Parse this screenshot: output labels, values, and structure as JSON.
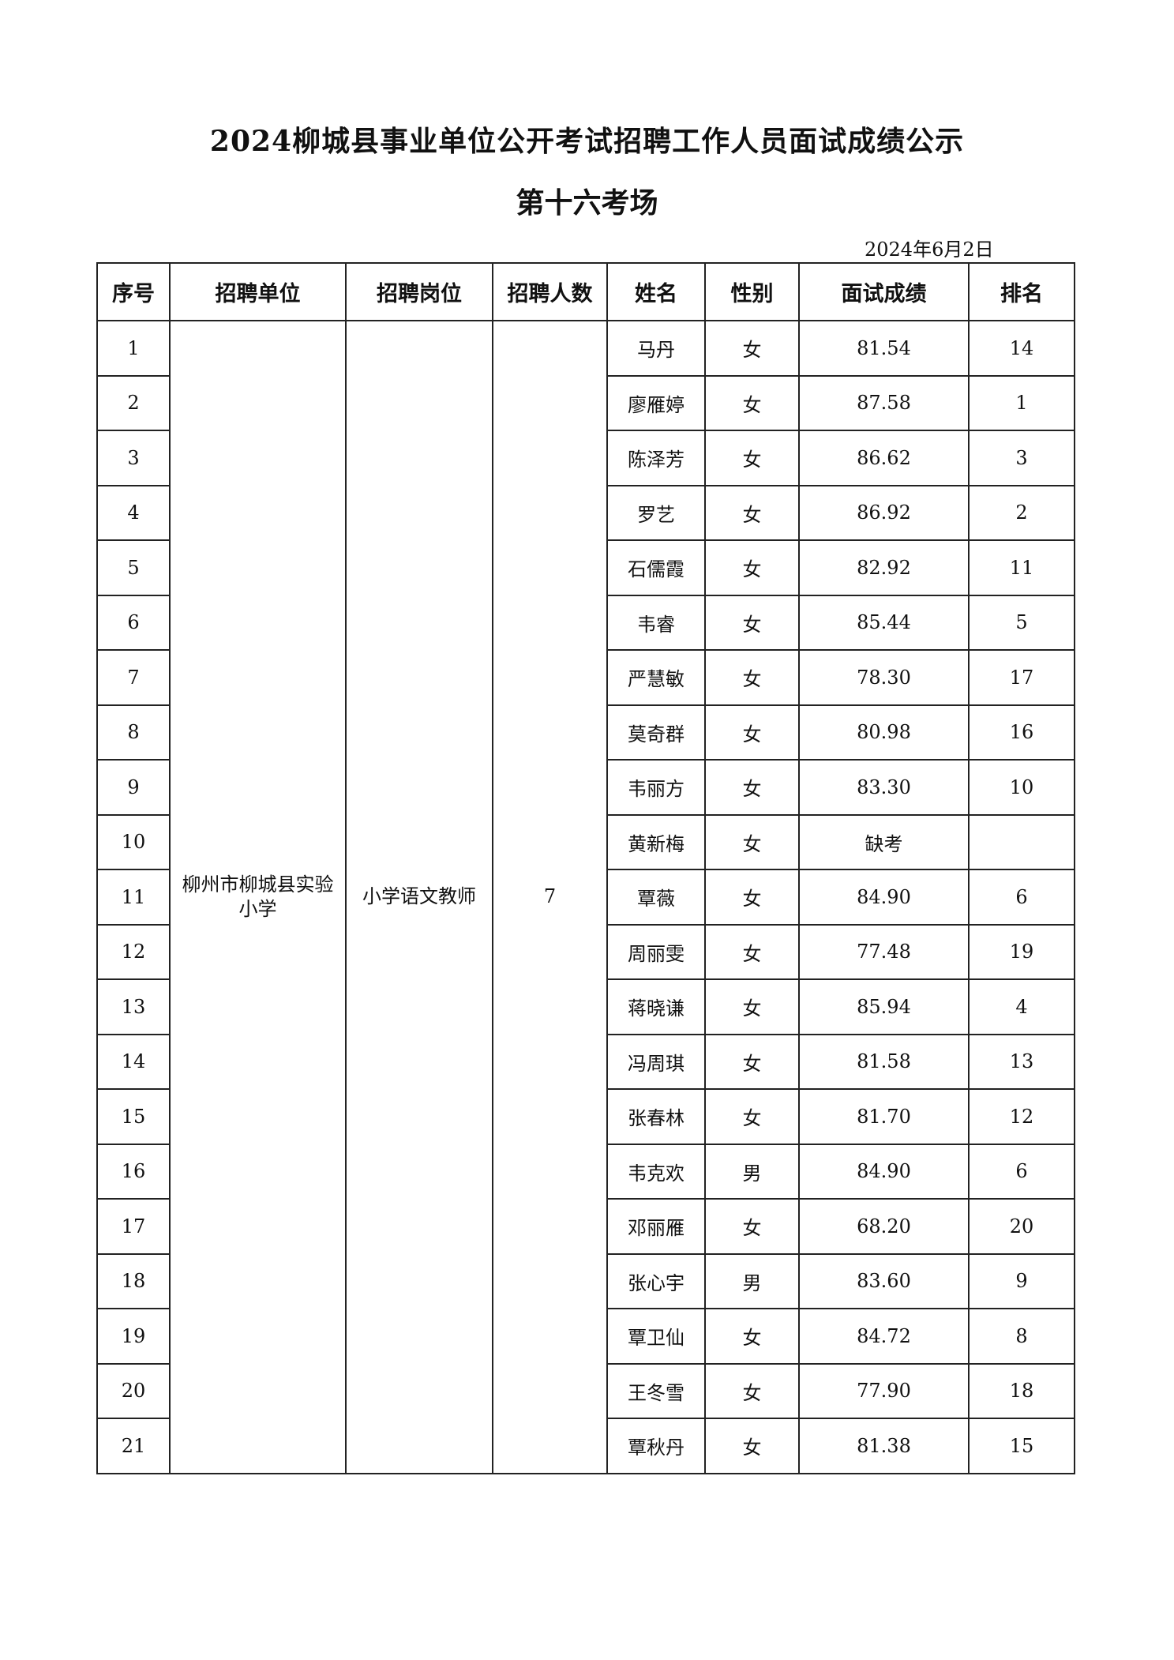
{
  "title": "2024柳城县事业单位公开考试招聘工作人员面试成绩公示",
  "subtitle": "第十六考场",
  "date": "2024年6月2日",
  "table": {
    "headers": [
      "序号",
      "招聘单位",
      "招聘岗位",
      "招聘人数",
      "姓名",
      "性别",
      "面试成绩",
      "排名"
    ],
    "unit": "柳州市柳城县实验小学",
    "position": "小学语文教师",
    "quota": "7",
    "rows": [
      {
        "no": "1",
        "name": "马丹",
        "gender": "女",
        "score": "81.54",
        "rank": "14"
      },
      {
        "no": "2",
        "name": "廖雁婷",
        "gender": "女",
        "score": "87.58",
        "rank": "1"
      },
      {
        "no": "3",
        "name": "陈泽芳",
        "gender": "女",
        "score": "86.62",
        "rank": "3"
      },
      {
        "no": "4",
        "name": "罗艺",
        "gender": "女",
        "score": "86.92",
        "rank": "2"
      },
      {
        "no": "5",
        "name": "石儒霞",
        "gender": "女",
        "score": "82.92",
        "rank": "11"
      },
      {
        "no": "6",
        "name": "韦睿",
        "gender": "女",
        "score": "85.44",
        "rank": "5"
      },
      {
        "no": "7",
        "name": "严慧敏",
        "gender": "女",
        "score": "78.30",
        "rank": "17"
      },
      {
        "no": "8",
        "name": "莫奇群",
        "gender": "女",
        "score": "80.98",
        "rank": "16"
      },
      {
        "no": "9",
        "name": "韦丽方",
        "gender": "女",
        "score": "83.30",
        "rank": "10"
      },
      {
        "no": "10",
        "name": "黄新梅",
        "gender": "女",
        "score": "缺考",
        "rank": ""
      },
      {
        "no": "11",
        "name": "覃薇",
        "gender": "女",
        "score": "84.90",
        "rank": "6"
      },
      {
        "no": "12",
        "name": "周丽雯",
        "gender": "女",
        "score": "77.48",
        "rank": "19"
      },
      {
        "no": "13",
        "name": "蒋晓谦",
        "gender": "女",
        "score": "85.94",
        "rank": "4"
      },
      {
        "no": "14",
        "name": "冯周琪",
        "gender": "女",
        "score": "81.58",
        "rank": "13"
      },
      {
        "no": "15",
        "name": "张春林",
        "gender": "女",
        "score": "81.70",
        "rank": "12"
      },
      {
        "no": "16",
        "name": "韦克欢",
        "gender": "男",
        "score": "84.90",
        "rank": "6"
      },
      {
        "no": "17",
        "name": "邓丽雁",
        "gender": "女",
        "score": "68.20",
        "rank": "20"
      },
      {
        "no": "18",
        "name": "张心宇",
        "gender": "男",
        "score": "83.60",
        "rank": "9"
      },
      {
        "no": "19",
        "name": "覃卫仙",
        "gender": "女",
        "score": "84.72",
        "rank": "8"
      },
      {
        "no": "20",
        "name": "王冬雪",
        "gender": "女",
        "score": "77.90",
        "rank": "18"
      },
      {
        "no": "21",
        "name": "覃秋丹",
        "gender": "女",
        "score": "81.38",
        "rank": "15"
      }
    ]
  }
}
